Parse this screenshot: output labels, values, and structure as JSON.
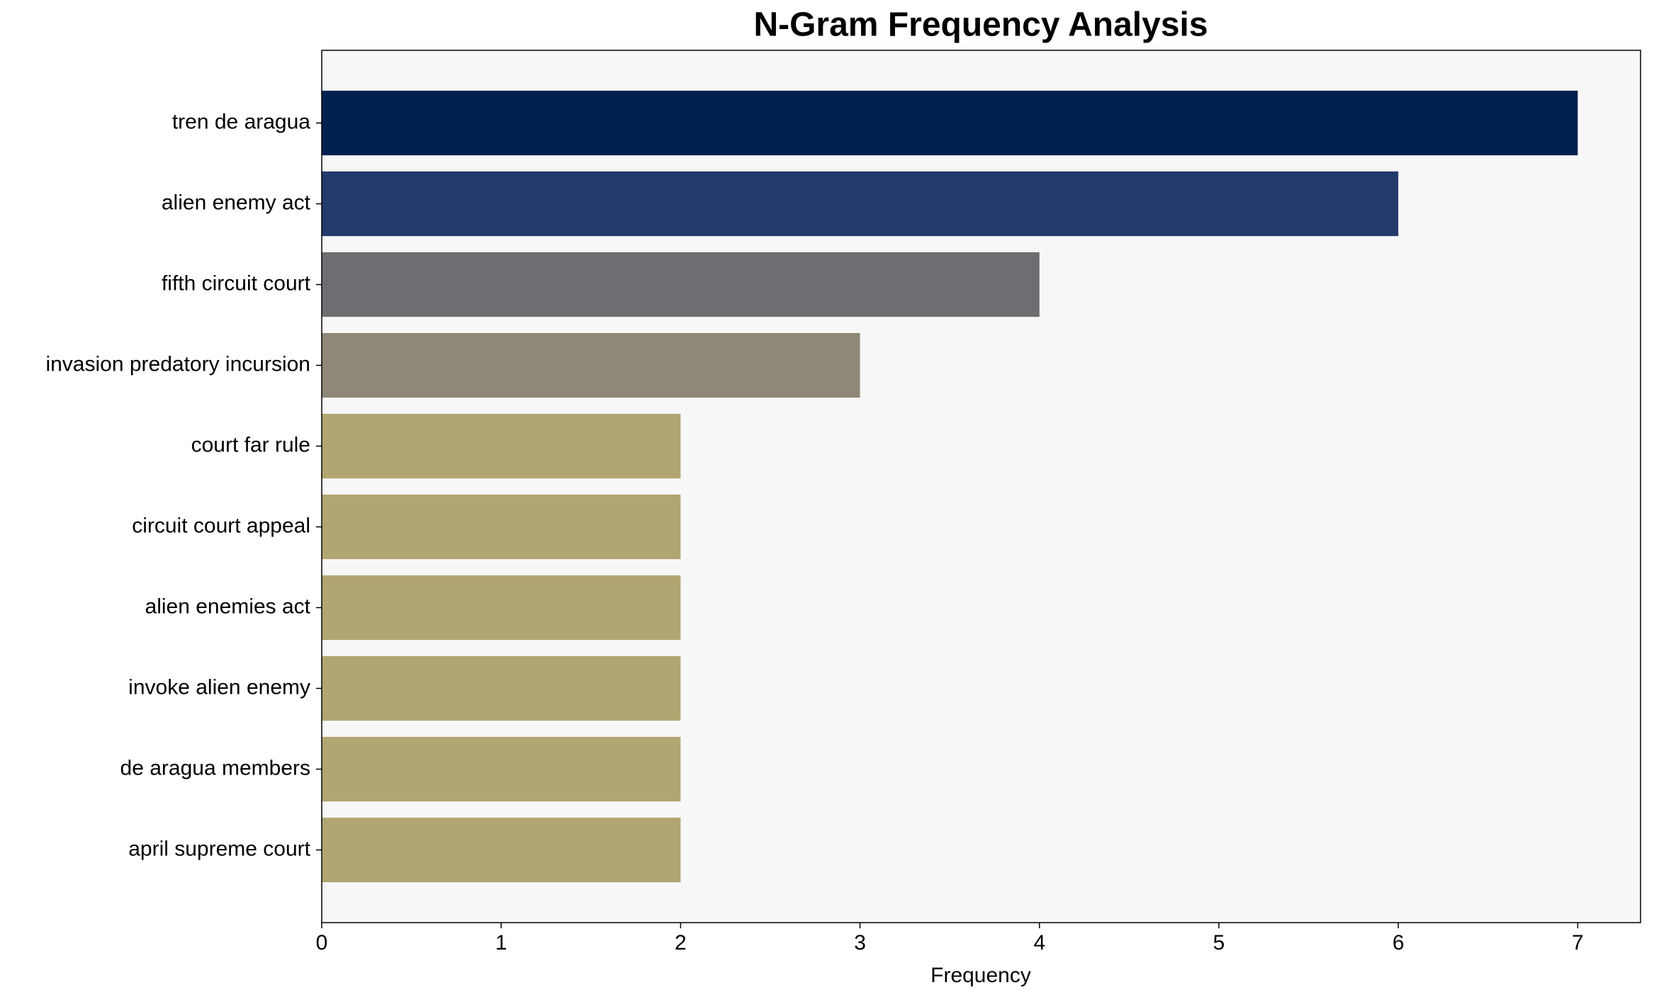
{
  "chart_data": {
    "type": "barh",
    "title": "N-Gram Frequency Analysis",
    "x_label": "Frequency",
    "categories": [
      "tren de aragua",
      "alien enemy act",
      "fifth circuit court",
      "invasion predatory incursion",
      "court far rule",
      "circuit court appeal",
      "alien enemies act",
      "invoke alien enemy",
      "de aragua members",
      "april supreme court"
    ],
    "values": [
      7,
      6,
      4,
      3,
      2,
      2,
      2,
      2,
      2,
      2
    ],
    "colors": [
      "#00214f",
      "#223a6c",
      "#6d6e72",
      "#8f8878",
      "#b1a671",
      "#b1a671",
      "#b1a671",
      "#b1a671",
      "#b1a671",
      "#b1a671"
    ],
    "xlim": [
      0,
      7.35
    ],
    "xticks": [
      0,
      1,
      2,
      3,
      4,
      5,
      6,
      7
    ]
  }
}
